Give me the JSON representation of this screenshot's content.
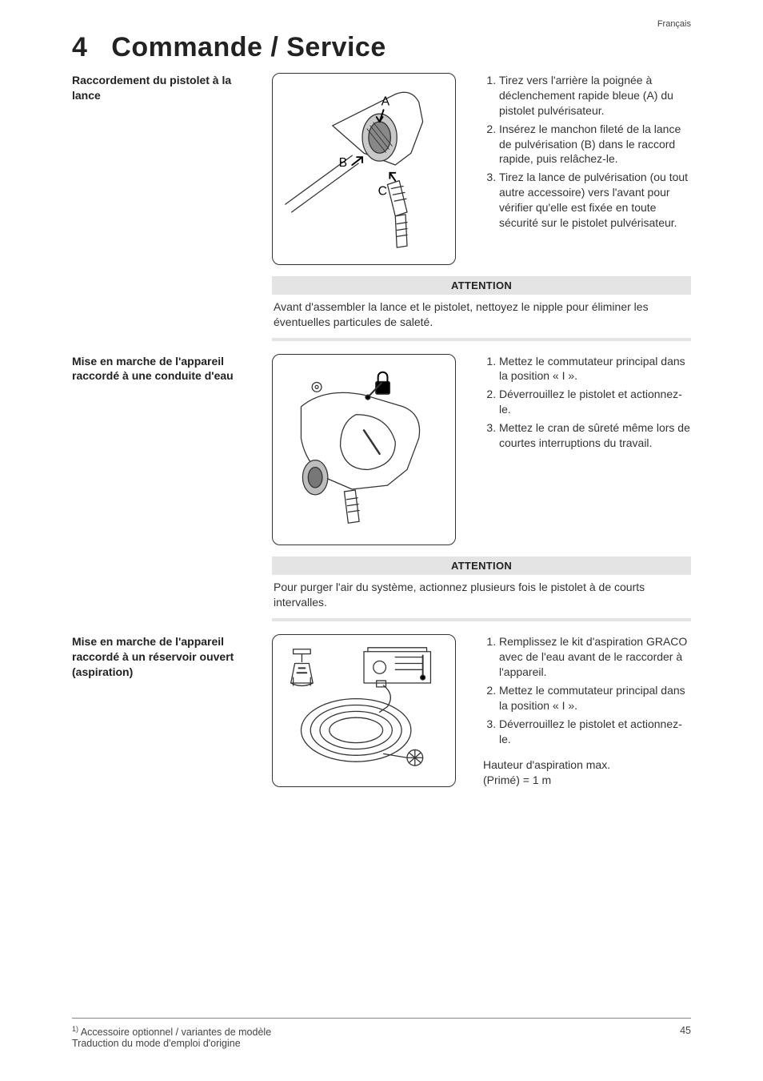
{
  "language_tag": "Français",
  "section_number": "4",
  "section_title": "Commande / Service",
  "blocks": [
    {
      "subhead": "Raccordement du pistolet à la lance",
      "fig_labels": [
        "A",
        "B",
        "C"
      ],
      "steps": [
        "Tirez vers l'arrière la poignée à déclenchement rapide bleue (A) du pistolet pulvérisateur.",
        "Insérez le manchon fileté de la lance de pulvérisation (B) dans le raccord rapide, puis relâchez-le.",
        "Tirez la lance de pulvérisation (ou tout autre accessoire) vers l'avant pour vérifier qu'elle est fixée en toute sécurité sur le pistolet pulvérisateur."
      ],
      "callout_title": "ATTENTION",
      "callout_body": "Avant d'assembler la lance et le pistolet, nettoyez le nipple pour éliminer les éventuelles particules de saleté."
    },
    {
      "subhead": "Mise en marche de l'appareil raccordé à une conduite d'eau",
      "steps": [
        "Mettez le commutateur principal dans la position « I ».",
        "Déverrouillez le pistolet et actionnez-le.",
        "Mettez le cran de sûreté même lors de courtes interruptions du travail."
      ],
      "callout_title": "ATTENTION",
      "callout_body": "Pour purger l'air du système, actionnez plusieurs fois le pistolet à de courts intervalles."
    },
    {
      "subhead": "Mise en marche de l'appareil raccordé à un réservoir ouvert (aspiration)",
      "steps": [
        "Remplissez le kit d'aspiration GRACO avec de l'eau avant de le raccorder à l'appareil.",
        "Mettez le commutateur principal dans la position « I ».",
        "Déverrouillez le pistolet et actionnez-le."
      ],
      "extra": "Hauteur d'aspiration max.\n(Primé) = 1 m"
    }
  ],
  "footer": {
    "note_sup": "1)",
    "note": "Accessoire optionnel / variantes de modèle",
    "translation": "Traduction du mode d'emploi d'origine",
    "page_number": "45"
  },
  "colors": {
    "text": "#333333",
    "callout_bg": "#e4e4e4",
    "rule": "#888888",
    "border": "#333333"
  }
}
